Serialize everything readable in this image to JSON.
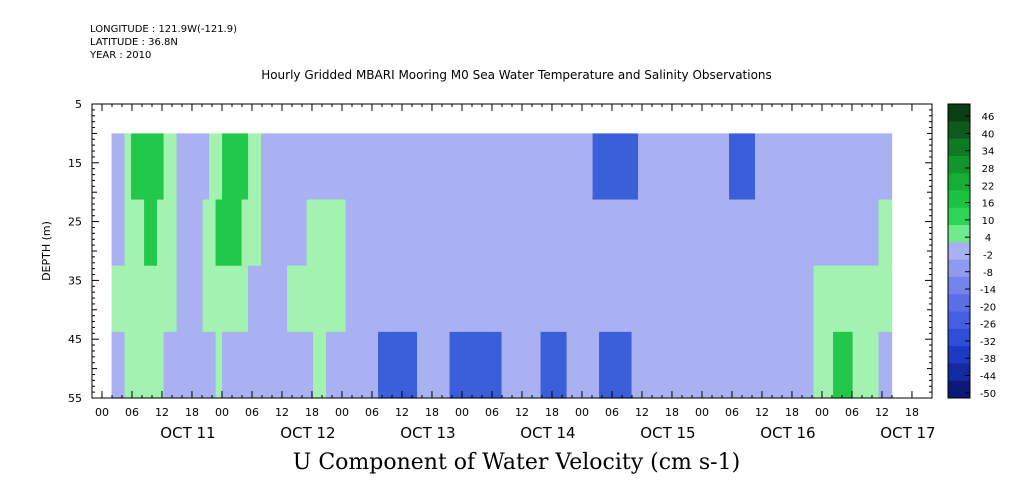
{
  "header": {
    "longitude": "LONGITUDE : 121.9W(-121.9)",
    "latitude": "LATITUDE : 36.8N",
    "year": "YEAR : 2010",
    "title": "Hourly Gridded MBARI Mooring M0 Sea Water Temperature and Salinity Observations"
  },
  "chart_data": {
    "type": "heatmap",
    "title": "U Component of Water Velocity (cm s-1)",
    "ylabel": "DEPTH (m)",
    "ylim": [
      55,
      5
    ],
    "yticks": [
      "5",
      "15",
      "25",
      "35",
      "45",
      "55"
    ],
    "data_depth_range": [
      10,
      55
    ],
    "x_hour_ticks": [
      "00",
      "06",
      "12",
      "18",
      "00",
      "06",
      "12",
      "18",
      "00",
      "06",
      "12",
      "18",
      "00",
      "06",
      "12",
      "18",
      "00",
      "06",
      "12",
      "18",
      "00",
      "06",
      "12",
      "18",
      "00",
      "06",
      "12",
      "18"
    ],
    "x_day_labels": [
      "OCT 11",
      "OCT 12",
      "OCT 13",
      "OCT 14",
      "OCT 15",
      "OCT 16",
      "OCT 17"
    ],
    "colorbar": {
      "labels": [
        "46",
        "40",
        "34",
        "28",
        "22",
        "16",
        "10",
        "4",
        "-2",
        "-8",
        "-14",
        "-20",
        "-26",
        "-32",
        "-38",
        "-44",
        "-50"
      ],
      "range": [
        -50,
        52
      ],
      "step": 6
    },
    "colors": {
      "strong_neg": "#0b0b6a",
      "neg": "#3a5fd8",
      "weak_neg": "#a9b1f2",
      "weak_pos": "#a2f2b0",
      "pos": "#22c84a",
      "strong_pos": "#0b5a1e"
    },
    "time_profile": [
      {
        "day": 10.83,
        "u": [
          -6,
          -4,
          2,
          -4
        ]
      },
      {
        "day": 11.0,
        "u": [
          8,
          6,
          6,
          4
        ]
      },
      {
        "day": 11.15,
        "u": [
          10,
          8,
          6,
          4
        ]
      },
      {
        "day": 11.3,
        "u": [
          6,
          4,
          2,
          0
        ]
      },
      {
        "day": 11.5,
        "u": [
          -6,
          -4,
          -2,
          -6
        ]
      },
      {
        "day": 11.7,
        "u": [
          6,
          8,
          6,
          2
        ]
      },
      {
        "day": 11.9,
        "u": [
          10,
          8,
          4,
          -2
        ]
      },
      {
        "day": 12.1,
        "u": [
          -2,
          0,
          -4,
          -8
        ]
      },
      {
        "day": 12.3,
        "u": [
          -6,
          -4,
          2,
          -4
        ]
      },
      {
        "day": 12.55,
        "u": [
          -4,
          4,
          4,
          2
        ]
      },
      {
        "day": 12.75,
        "u": [
          -4,
          2,
          2,
          -2
        ]
      },
      {
        "day": 12.95,
        "u": [
          -6,
          -4,
          -6,
          -8
        ]
      },
      {
        "day": 13.15,
        "u": [
          -12,
          -10,
          -10,
          -18
        ]
      },
      {
        "day": 13.35,
        "u": [
          -10,
          -6,
          -8,
          -14
        ]
      },
      {
        "day": 13.55,
        "u": [
          -8,
          -6,
          -8,
          -12
        ]
      },
      {
        "day": 13.75,
        "u": [
          -10,
          -10,
          -12,
          -16
        ]
      },
      {
        "day": 13.95,
        "u": [
          -12,
          -8,
          -10,
          -18
        ]
      },
      {
        "day": 14.15,
        "u": [
          -14,
          -10,
          -8,
          -12
        ]
      },
      {
        "day": 14.3,
        "u": [
          -6,
          2,
          -4,
          -8
        ]
      },
      {
        "day": 14.5,
        "u": [
          -14,
          -12,
          -14,
          -18
        ]
      },
      {
        "day": 14.7,
        "u": [
          -8,
          -6,
          -8,
          -12
        ]
      },
      {
        "day": 14.9,
        "u": [
          -16,
          -12,
          -10,
          -14
        ]
      },
      {
        "day": 15.1,
        "u": [
          -20,
          -14,
          -12,
          -16
        ]
      },
      {
        "day": 15.3,
        "u": [
          -10,
          -8,
          -6,
          -10
        ]
      },
      {
        "day": 15.5,
        "u": [
          -12,
          -10,
          -10,
          -14
        ]
      },
      {
        "day": 15.7,
        "u": [
          -14,
          -8,
          -6,
          -10
        ]
      },
      {
        "day": 15.9,
        "u": [
          -12,
          -6,
          -4,
          -8
        ]
      },
      {
        "day": 16.1,
        "u": [
          -18,
          -10,
          -6,
          -8
        ]
      },
      {
        "day": 16.3,
        "u": [
          -10,
          -6,
          -4,
          -8
        ]
      },
      {
        "day": 16.5,
        "u": [
          -8,
          -4,
          -6,
          -10
        ]
      },
      {
        "day": 16.7,
        "u": [
          -6,
          -6,
          2,
          4
        ]
      },
      {
        "day": 16.9,
        "u": [
          -8,
          -8,
          4,
          8
        ]
      },
      {
        "day": 17.1,
        "u": [
          -6,
          -4,
          2,
          6
        ]
      },
      {
        "day": 17.3,
        "u": [
          -6,
          4,
          2,
          -2
        ]
      }
    ]
  }
}
